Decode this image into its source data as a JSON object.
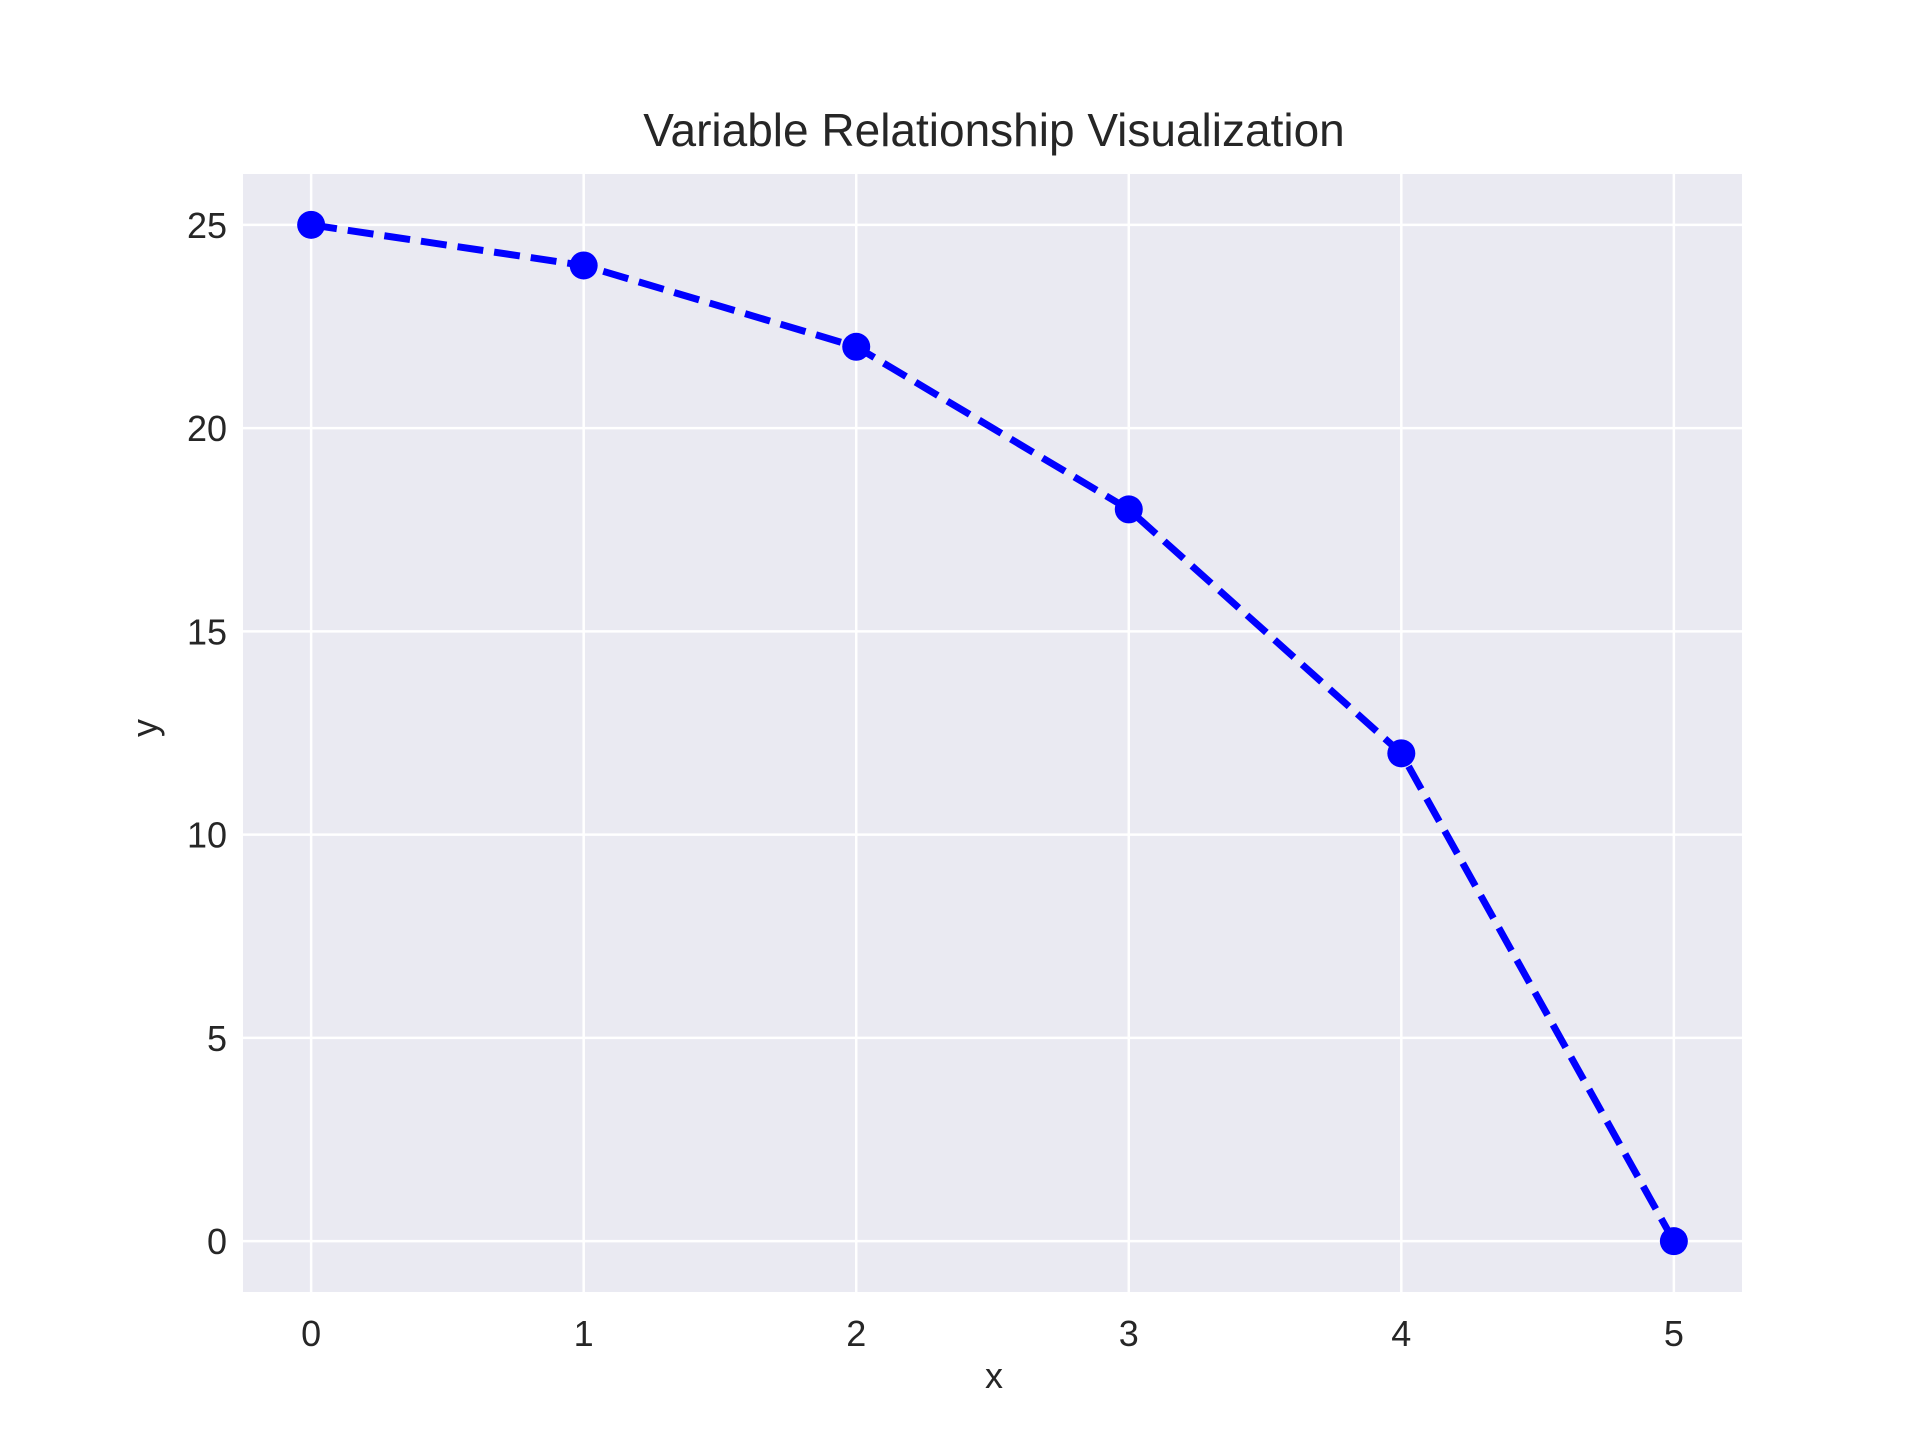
{
  "chart_data": {
    "type": "line",
    "title": "Variable Relationship Visualization",
    "xlabel": "x",
    "ylabel": "y",
    "xlim": [
      -0.25,
      5.25
    ],
    "ylim": [
      -1.25,
      26.25
    ],
    "xticks": [
      0,
      1,
      2,
      3,
      4,
      5
    ],
    "yticks": [
      0,
      5,
      10,
      15,
      20,
      25
    ],
    "grid": true,
    "legend": "none",
    "series": [
      {
        "x": [
          0,
          1,
          2,
          3,
          4,
          5
        ],
        "y": [
          25,
          24,
          22,
          18,
          12,
          0
        ],
        "color": "#0000ff",
        "line_style": "dashed",
        "marker": "circle"
      }
    ]
  },
  "colors": {
    "plot_background": "#eaeaf2",
    "grid": "#ffffff",
    "text": "#262626"
  }
}
